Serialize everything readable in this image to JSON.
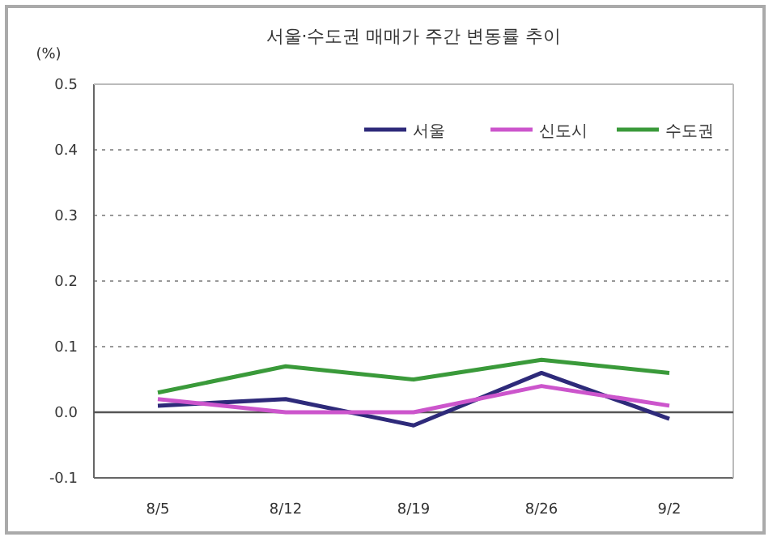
{
  "chart_data": {
    "type": "line",
    "title": "서울·수도권 매매가 주간 변동률 추이",
    "ylabel": "(%)",
    "categories": [
      "8/5",
      "8/12",
      "8/19",
      "8/26",
      "9/2"
    ],
    "series": [
      {
        "name": "서울",
        "color": "#2e2a7a",
        "values": [
          0.01,
          0.02,
          -0.02,
          0.06,
          -0.01
        ]
      },
      {
        "name": "신도시",
        "color": "#cc55cc",
        "values": [
          0.02,
          0.0,
          0.0,
          0.04,
          0.01
        ]
      },
      {
        "name": "수도권",
        "color": "#3a9a3a",
        "values": [
          0.03,
          0.07,
          0.05,
          0.08,
          0.06
        ]
      }
    ],
    "ylim": [
      -0.1,
      0.5
    ],
    "yticks": [
      {
        "value": -0.1,
        "label": "-0.1"
      },
      {
        "value": 0,
        "label": "0.0"
      },
      0.1,
      0.2,
      0.3,
      0.4,
      0.5
    ],
    "ref_lines": [
      {
        "axis": "y",
        "value": 0,
        "color": "#555555"
      }
    ],
    "grid": "y",
    "legend": "top right",
    "marker": "none",
    "line_style": "solid"
  }
}
